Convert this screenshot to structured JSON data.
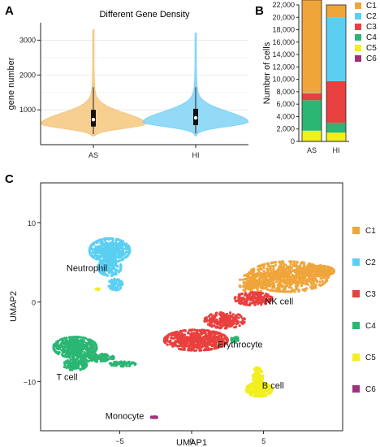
{
  "panels": {
    "a": "A",
    "b": "B",
    "c": "C"
  },
  "chart_data": [
    {
      "id": "A",
      "type": "violin",
      "title": "Different Gene Density",
      "xlabel": "",
      "ylabel": "gene number",
      "categories": [
        "AS",
        "HI"
      ],
      "ylim": [
        0,
        3500
      ],
      "yticks": [
        1000,
        2000,
        3000
      ],
      "colors": [
        "#f5c77e",
        "#7fd3f5"
      ],
      "medians": [
        720,
        770
      ],
      "q1": [
        520,
        560
      ],
      "q3": [
        1000,
        1030
      ],
      "whisker_low": [
        300,
        320
      ],
      "whisker_high": [
        1650,
        1650
      ],
      "max": [
        3300,
        3200
      ],
      "grid": true
    },
    {
      "id": "B",
      "type": "bar",
      "stacked": true,
      "ylabel": "Number of cells",
      "categories": [
        "AS",
        "HI"
      ],
      "ylim": [
        0,
        22000
      ],
      "yticks": [
        0,
        2000,
        4000,
        6000,
        8000,
        10000,
        12000,
        14000,
        16000,
        18000,
        20000,
        22000
      ],
      "ytick_labels": [
        "0",
        "2,000",
        "4,000",
        "6,000",
        "8,000",
        "10,000",
        "12,000",
        "14,000",
        "16,000",
        "18,000",
        "20,000",
        "22,000"
      ],
      "series": [
        {
          "name": "C6",
          "color": "#a0307a",
          "values": [
            30,
            20
          ]
        },
        {
          "name": "C5",
          "color": "#f2ef1e",
          "values": [
            1700,
            1400
          ]
        },
        {
          "name": "C4",
          "color": "#2bb673",
          "values": [
            4900,
            1600
          ]
        },
        {
          "name": "C3",
          "color": "#e8403e",
          "values": [
            1100,
            6700
          ]
        },
        {
          "name": "C2",
          "color": "#5bcff2",
          "values": [
            100,
            10200
          ]
        },
        {
          "name": "C1",
          "color": "#f0a53a",
          "values": [
            14970,
            2080
          ]
        }
      ],
      "legend": [
        "C1",
        "C2",
        "C3",
        "C4",
        "C5",
        "C6"
      ],
      "legend_position": "right"
    },
    {
      "id": "C",
      "type": "scatter",
      "xlabel": "UMAP1",
      "ylabel": "UMAP2",
      "xlim": [
        -10.5,
        10.5
      ],
      "ylim": [
        -16.2,
        15
      ],
      "xticks": [
        -5,
        0,
        5
      ],
      "yticks": [
        10,
        0,
        -10
      ],
      "legend": [
        "C1",
        "C2",
        "C3",
        "C4",
        "C5",
        "C6"
      ],
      "legend_colors": [
        "#f0a53a",
        "#5bcff2",
        "#e8403e",
        "#2bb673",
        "#f2ef1e",
        "#a0307a"
      ],
      "legend_position": "right",
      "annotations": [
        {
          "text": "Neutrophil",
          "x": -8.7,
          "y": 3.9
        },
        {
          "text": "NK cell",
          "x": 5.1,
          "y": -0.3
        },
        {
          "text": "Erythrocyte",
          "x": 1.8,
          "y": -5.7
        },
        {
          "text": "T cell",
          "x": -9.4,
          "y": -9.8
        },
        {
          "text": "B cell",
          "x": 4.9,
          "y": -10.9
        },
        {
          "text": "Monocyte",
          "x": -6.0,
          "y": -14.7
        }
      ],
      "clusters": [
        {
          "name": "C1",
          "blobs": [
            {
              "cx": 6.7,
              "cy": 3.2,
              "rx": 2.8,
              "ry": 1.9,
              "n": 700
            },
            {
              "cx": 8.7,
              "cy": 3.9,
              "rx": 1.2,
              "ry": 0.7,
              "n": 200
            },
            {
              "cx": 4.3,
              "cy": 2.4,
              "rx": 1.0,
              "ry": 1.2,
              "n": 160
            }
          ]
        },
        {
          "name": "C2",
          "blobs": [
            {
              "cx": -5.7,
              "cy": 6.5,
              "rx": 1.4,
              "ry": 1.5,
              "n": 450
            },
            {
              "cx": -5.7,
              "cy": 4.4,
              "rx": 0.8,
              "ry": 1.1,
              "n": 160
            },
            {
              "cx": -5.3,
              "cy": 2.2,
              "rx": 0.5,
              "ry": 0.7,
              "n": 70
            }
          ]
        },
        {
          "name": "C3",
          "blobs": [
            {
              "cx": 0.3,
              "cy": -4.8,
              "rx": 2.2,
              "ry": 1.3,
              "n": 600
            },
            {
              "cx": 2.3,
              "cy": -2.3,
              "rx": 1.4,
              "ry": 1.0,
              "n": 220
            },
            {
              "cx": 4.3,
              "cy": 0.4,
              "rx": 1.3,
              "ry": 0.8,
              "n": 200
            }
          ]
        },
        {
          "name": "C4",
          "blobs": [
            {
              "cx": -8.1,
              "cy": -5.7,
              "rx": 1.5,
              "ry": 1.3,
              "n": 420
            },
            {
              "cx": -8.1,
              "cy": -7.9,
              "rx": 0.8,
              "ry": 0.7,
              "n": 130
            },
            {
              "cx": -6.6,
              "cy": -7.0,
              "rx": 1.2,
              "ry": 0.5,
              "n": 130
            },
            {
              "cx": -4.8,
              "cy": -7.8,
              "rx": 0.9,
              "ry": 0.3,
              "n": 60
            },
            {
              "cx": 3.0,
              "cy": -4.7,
              "rx": 0.25,
              "ry": 0.35,
              "n": 40
            }
          ]
        },
        {
          "name": "C5",
          "blobs": [
            {
              "cx": 4.7,
              "cy": -11.0,
              "rx": 0.9,
              "ry": 0.9,
              "n": 260
            },
            {
              "cx": 4.6,
              "cy": -9.4,
              "rx": 0.35,
              "ry": 1.2,
              "n": 90
            },
            {
              "cx": -6.5,
              "cy": 1.6,
              "rx": 0.15,
              "ry": 0.1,
              "n": 8
            }
          ]
        },
        {
          "name": "C6",
          "blobs": [
            {
              "cx": -2.6,
              "cy": -14.5,
              "rx": 0.25,
              "ry": 0.08,
              "n": 20
            }
          ]
        }
      ]
    }
  ]
}
